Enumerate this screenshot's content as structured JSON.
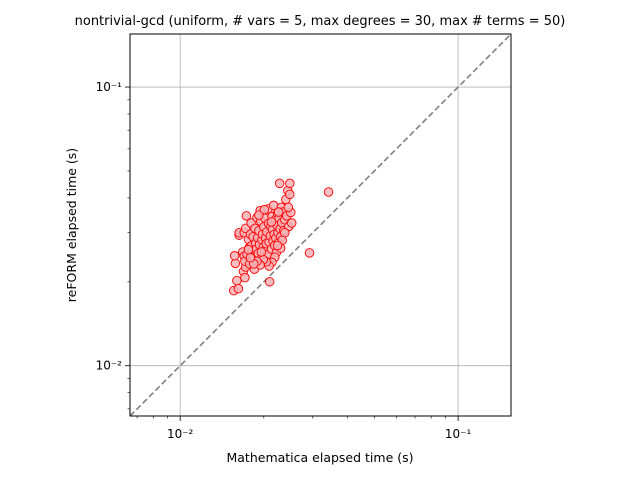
{
  "chart_data": {
    "type": "scatter",
    "title": "nontrivial-gcd (uniform, # vars = 5, max degrees = 30, max # terms = 50)",
    "xlabel": "Mathematica elapsed time (s)",
    "ylabel": "reFORM elapsed time (s)",
    "xscale": "log",
    "yscale": "log",
    "xlim": [
      0.0066,
      0.155
    ],
    "ylim": [
      0.0066,
      0.155
    ],
    "grid": true,
    "reference_line": "y = x",
    "x_ticks": [
      0.01,
      0.1
    ],
    "y_ticks": [
      0.01,
      0.1
    ],
    "x_tick_labels": [
      "10⁻²",
      "10⁻¹"
    ],
    "y_tick_labels": [
      "10⁻²",
      "10⁻¹"
    ],
    "marker_fill": "#f4b3b6",
    "marker_edge": "#ff0000",
    "reference_color": "#808080",
    "points": [
      [
        0.0156,
        0.0186
      ],
      [
        0.0162,
        0.0189
      ],
      [
        0.016,
        0.0202
      ],
      [
        0.0158,
        0.0233
      ],
      [
        0.0157,
        0.0248
      ],
      [
        0.0163,
        0.0294
      ],
      [
        0.0163,
        0.03
      ],
      [
        0.0168,
        0.0256
      ],
      [
        0.017,
        0.0247
      ],
      [
        0.0169,
        0.0218
      ],
      [
        0.0171,
        0.0207
      ],
      [
        0.0172,
        0.0226
      ],
      [
        0.0171,
        0.0237
      ],
      [
        0.0174,
        0.0251
      ],
      [
        0.017,
        0.03
      ],
      [
        0.0172,
        0.0311
      ],
      [
        0.0173,
        0.0345
      ],
      [
        0.0176,
        0.0284
      ],
      [
        0.0177,
        0.0265
      ],
      [
        0.0178,
        0.0232
      ],
      [
        0.0179,
        0.0296
      ],
      [
        0.018,
        0.0325
      ],
      [
        0.0181,
        0.027
      ],
      [
        0.0182,
        0.0258
      ],
      [
        0.0183,
        0.029
      ],
      [
        0.0184,
        0.0245
      ],
      [
        0.0185,
        0.0222
      ],
      [
        0.0186,
        0.0311
      ],
      [
        0.0187,
        0.0275
      ],
      [
        0.0188,
        0.0262
      ],
      [
        0.0189,
        0.034
      ],
      [
        0.019,
        0.0288
      ],
      [
        0.0191,
        0.0253
      ],
      [
        0.0192,
        0.0305
      ],
      [
        0.0193,
        0.0272
      ],
      [
        0.0194,
        0.036
      ],
      [
        0.0195,
        0.033
      ],
      [
        0.0196,
        0.0242
      ],
      [
        0.0197,
        0.0283
      ],
      [
        0.0198,
        0.0296
      ],
      [
        0.0199,
        0.0266
      ],
      [
        0.02,
        0.0315
      ],
      [
        0.0201,
        0.0258
      ],
      [
        0.0202,
        0.0338
      ],
      [
        0.0203,
        0.0287
      ],
      [
        0.0204,
        0.0274
      ],
      [
        0.0205,
        0.0302
      ],
      [
        0.0206,
        0.025
      ],
      [
        0.0207,
        0.0365
      ],
      [
        0.0208,
        0.0324
      ],
      [
        0.0209,
        0.0278
      ],
      [
        0.021,
        0.02
      ],
      [
        0.0211,
        0.0292
      ],
      [
        0.0212,
        0.0315
      ],
      [
        0.0213,
        0.0262
      ],
      [
        0.0214,
        0.0343
      ],
      [
        0.0215,
        0.0308
      ],
      [
        0.0216,
        0.028
      ],
      [
        0.0217,
        0.0376
      ],
      [
        0.0218,
        0.0296
      ],
      [
        0.0219,
        0.027
      ],
      [
        0.022,
        0.0334
      ],
      [
        0.0221,
        0.0287
      ],
      [
        0.0222,
        0.0255
      ],
      [
        0.0223,
        0.0319
      ],
      [
        0.0224,
        0.0352
      ],
      [
        0.0225,
        0.03
      ],
      [
        0.0226,
        0.0276
      ],
      [
        0.0227,
        0.0338
      ],
      [
        0.0228,
        0.0451
      ],
      [
        0.0229,
        0.031
      ],
      [
        0.023,
        0.029
      ],
      [
        0.0231,
        0.037
      ],
      [
        0.0232,
        0.0326
      ],
      [
        0.0233,
        0.0282
      ],
      [
        0.0234,
        0.0356
      ],
      [
        0.0236,
        0.0305
      ],
      [
        0.0238,
        0.0334
      ],
      [
        0.024,
        0.0395
      ],
      [
        0.0242,
        0.0345
      ],
      [
        0.0244,
        0.0425
      ],
      [
        0.0246,
        0.0316
      ],
      [
        0.0248,
        0.0451
      ],
      [
        0.025,
        0.0355
      ],
      [
        0.0252,
        0.0325
      ],
      [
        0.0248,
        0.0412
      ],
      [
        0.0245,
        0.037
      ],
      [
        0.023,
        0.0264
      ],
      [
        0.0224,
        0.027
      ],
      [
        0.0219,
        0.0245
      ],
      [
        0.0214,
        0.0235
      ],
      [
        0.0209,
        0.0228
      ],
      [
        0.0204,
        0.0236
      ],
      [
        0.0199,
        0.024
      ],
      [
        0.0194,
        0.023
      ],
      [
        0.0189,
        0.0237
      ],
      [
        0.0184,
        0.0232
      ],
      [
        0.0179,
        0.0244
      ],
      [
        0.0176,
        0.0261
      ],
      [
        0.0192,
        0.0347
      ],
      [
        0.0201,
        0.0363
      ],
      [
        0.0213,
        0.0328
      ],
      [
        0.0226,
        0.0356
      ],
      [
        0.0238,
        0.03
      ],
      [
        0.0196,
        0.0256
      ],
      [
        0.0292,
        0.0254
      ],
      [
        0.0342,
        0.042
      ]
    ]
  }
}
